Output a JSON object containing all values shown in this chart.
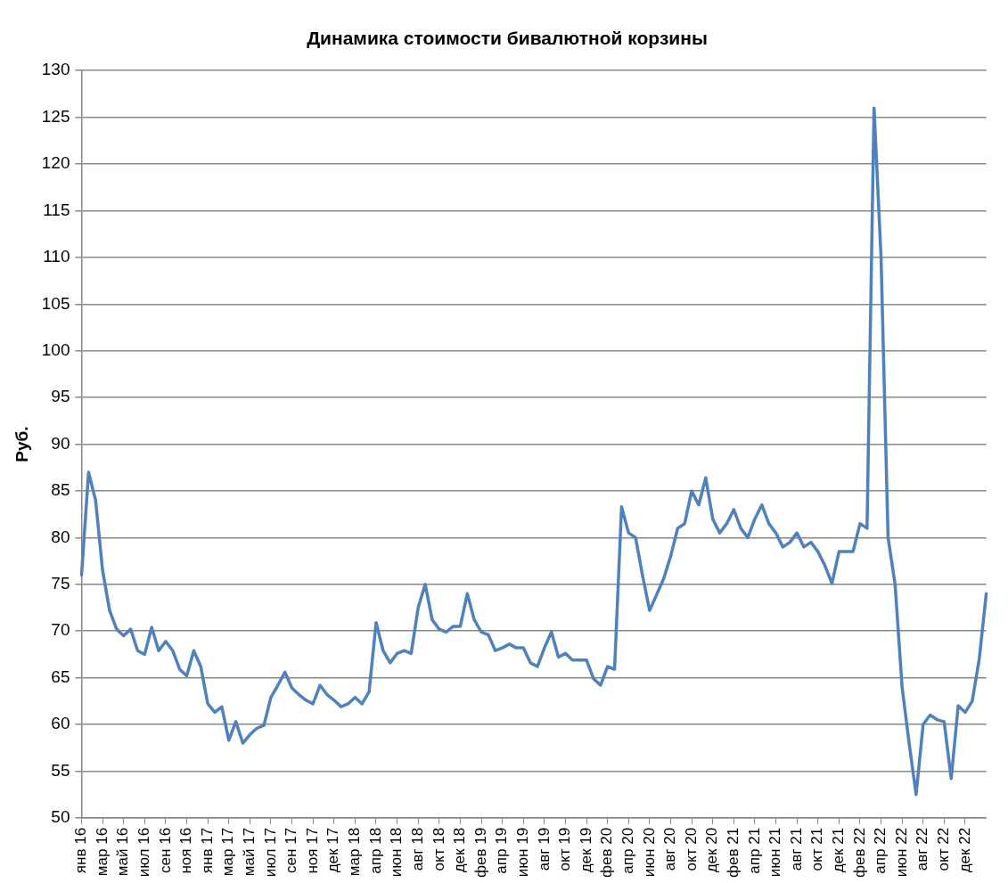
{
  "chart_data": {
    "type": "line",
    "title": "Динамика стоимости бивалютной корзины",
    "ylabel": "Руб.",
    "categories": [
      "янв 16",
      null,
      null,
      "мар 16",
      null,
      null,
      "май 16",
      null,
      null,
      "июл 16",
      null,
      null,
      "сен 16",
      null,
      null,
      "ноя 16",
      null,
      null,
      "янв 17",
      null,
      null,
      "мар 17",
      null,
      null,
      "май 17",
      null,
      null,
      "июл 17",
      null,
      null,
      "сен 17",
      null,
      null,
      "ноя 17",
      null,
      null,
      "дек 17",
      null,
      null,
      "мар 18",
      null,
      null,
      "апр 18",
      null,
      null,
      "июн 18",
      null,
      null,
      "авг 18",
      null,
      null,
      "окт 18",
      null,
      null,
      "дек 18",
      null,
      null,
      "фев 19",
      null,
      null,
      "апр 19",
      null,
      null,
      "июн 19",
      null,
      null,
      "авг 19",
      null,
      null,
      "окт 19",
      null,
      null,
      "дек 19",
      null,
      null,
      "фев 20",
      null,
      null,
      "апр 20",
      null,
      null,
      "июн 20",
      null,
      null,
      "авг 20",
      null,
      null,
      "окт 20",
      null,
      null,
      "дек 20",
      null,
      null,
      "фев 21",
      null,
      null,
      "апр 21",
      null,
      null,
      "июн 21",
      null,
      null,
      "авг 21",
      null,
      null,
      "окт 21",
      null,
      null,
      "дек 21",
      null,
      null,
      "фев 22",
      null,
      null,
      "апр 22",
      null,
      null,
      "июн 22",
      null,
      null,
      "авг 22",
      null,
      null,
      "окт 22",
      null,
      null,
      "дек 22",
      null,
      null,
      null
    ],
    "series": [
      {
        "color": "#4f81bd",
        "values": [
          76,
          87,
          84,
          76.5,
          72.2,
          70.2,
          69.5,
          70.2,
          67.9,
          67.5,
          70.4,
          67.9,
          68.9,
          67.9,
          65.9,
          65.2,
          67.9,
          66.2,
          62.2,
          61.3,
          61.9,
          58.3,
          60.3,
          58,
          58.9,
          59.6,
          59.9,
          62.9,
          64.2,
          65.6,
          63.9,
          63.2,
          62.6,
          62.2,
          64.2,
          63.2,
          62.6,
          61.9,
          62.2,
          62.9,
          62.2,
          63.5,
          70.9,
          67.9,
          66.6,
          67.6,
          67.9,
          67.6,
          72.5,
          75,
          71.2,
          70.2,
          69.9,
          70.5,
          70.5,
          74,
          71.2,
          69.9,
          69.6,
          67.9,
          68.2,
          68.6,
          68.2,
          68.2,
          66.6,
          66.2,
          68.2,
          69.9,
          67.2,
          67.6,
          66.9,
          66.9,
          66.9,
          64.9,
          64.2,
          66.2,
          65.9,
          83.3,
          80.5,
          80,
          75.9,
          72.2,
          73.9,
          75.6,
          78,
          81,
          81.5,
          85,
          83.5,
          86.4,
          82,
          80.5,
          81.5,
          83,
          81,
          80,
          82,
          83.5,
          81.5,
          80.5,
          79,
          79.5,
          80.5,
          79,
          79.5,
          78.5,
          77,
          75.1,
          78.5,
          78.5,
          78.5,
          81.5,
          81,
          126,
          110,
          80,
          75,
          64,
          58,
          52.5,
          60,
          61,
          60.5,
          60.3,
          54.2,
          62,
          61.3,
          62.5,
          67,
          74
        ]
      }
    ],
    "ylim": [
      50,
      130
    ],
    "yticks": [
      50,
      55,
      60,
      65,
      70,
      75,
      80,
      85,
      90,
      95,
      100,
      105,
      110,
      115,
      120,
      125,
      130
    ],
    "grid": "y",
    "marker": "none",
    "line_style": "solid"
  }
}
